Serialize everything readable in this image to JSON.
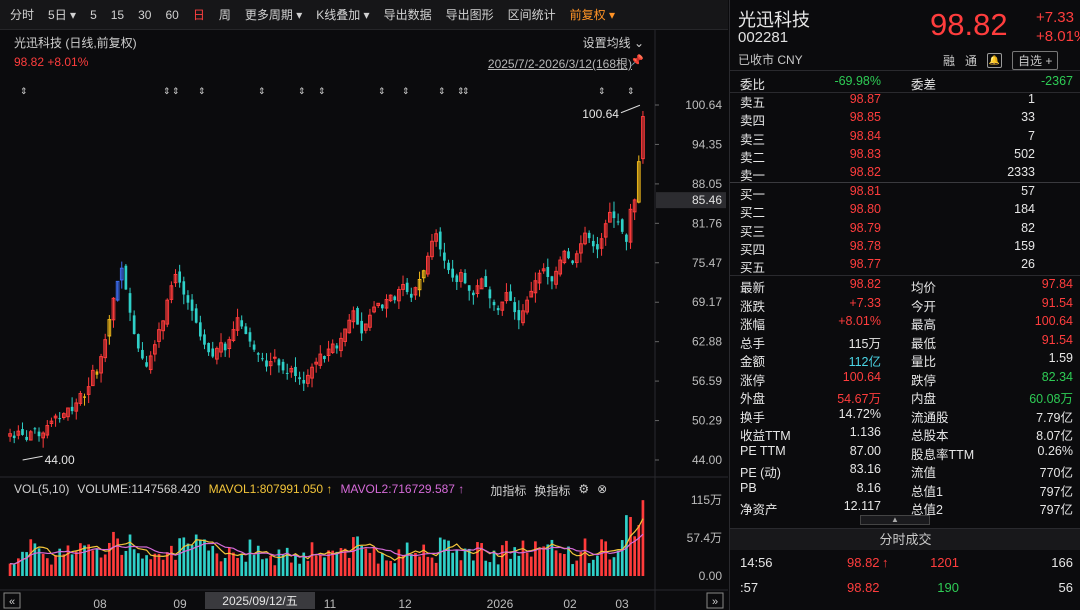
{
  "toolbar": {
    "items": [
      "分时",
      "5日",
      "5",
      "15",
      "30",
      "60",
      "日",
      "周",
      "更多周期",
      "K线叠加",
      "导出数据",
      "导出图形",
      "区间统计",
      "前复权"
    ],
    "active_index": 6,
    "dropdown_indices": [
      1,
      8,
      9,
      13
    ]
  },
  "chart": {
    "header": "光迅科技 (日线,前复权)",
    "price_line": "98.82  +8.01%",
    "ma_setting": "设置均线",
    "range": "2025/7/2-2026/3/12(168根)",
    "high_label": "100.64",
    "low_label": "44.00",
    "current_price_tag": "85.46",
    "cursor_date": "2025/09/12/五"
  },
  "chart_data": {
    "type": "candlestick",
    "price_axis": {
      "ticks": [
        100.64,
        94.35,
        88.05,
        81.76,
        75.47,
        69.17,
        62.88,
        56.59,
        50.29,
        44.0
      ],
      "labels": [
        "100.64",
        "94.35",
        "88.05",
        "81.76",
        "75.47",
        "69.17",
        "62.88",
        "56.59",
        "50.29",
        "44.00"
      ]
    },
    "volume_axis": {
      "ticks": [
        1150000,
        574000,
        0
      ],
      "labels": [
        "115万",
        "57.4万",
        "0.00"
      ]
    },
    "x_labels": [
      "08",
      "09",
      "10",
      "11",
      "12",
      "2026",
      "02",
      "03"
    ],
    "close_path": [
      48.2,
      47.5,
      48.6,
      48.0,
      47.2,
      48.5,
      48.9,
      47.8,
      48.3,
      49.5,
      50.2,
      51.0,
      50.6,
      51.4,
      52.3,
      51.8,
      53.1,
      54.6,
      53.9,
      55.7,
      58.3,
      57.6,
      60.5,
      63.2,
      66.4,
      69.8,
      72.5,
      74.6,
      71.2,
      67.5,
      64.1,
      61.8,
      60.2,
      58.9,
      60.6,
      62.4,
      64.8,
      66.2,
      69.5,
      71.8,
      73.6,
      72.3,
      70.4,
      69.1,
      67.8,
      65.9,
      63.7,
      62.4,
      61.2,
      60.5,
      61.8,
      62.7,
      61.5,
      63.2,
      64.8,
      66.7,
      65.3,
      64.1,
      62.9,
      61.6,
      60.8,
      60.2,
      58.9,
      59.7,
      60.4,
      59.1,
      58.3,
      57.8,
      58.6,
      57.4,
      56.9,
      56.2,
      57.5,
      58.8,
      59.6,
      60.9,
      60.1,
      61.7,
      62.5,
      61.8,
      63.4,
      64.9,
      66.3,
      67.8,
      65.6,
      64.2,
      65.7,
      67.1,
      68.4,
      69.0,
      68.2,
      69.6,
      70.3,
      69.5,
      71.2,
      72.0,
      70.8,
      69.9,
      71.5,
      72.8,
      74.2,
      76.5,
      78.9,
      80.1,
      77.6,
      75.8,
      74.3,
      73.1,
      72.4,
      73.9,
      72.2,
      71.0,
      70.3,
      71.8,
      72.9,
      71.6,
      69.8,
      68.7,
      67.9,
      69.2,
      70.7,
      69.4,
      67.6,
      66.3,
      67.8,
      69.5,
      70.9,
      72.6,
      73.8,
      74.5,
      73.2,
      72.5,
      74.1,
      75.9,
      77.3,
      76.2,
      75.4,
      76.9,
      78.5,
      80.2,
      79.4,
      78.1,
      77.6,
      79.3,
      81.7,
      83.5,
      82.6,
      81.9,
      80.4,
      78.8,
      84.0,
      85.5,
      91.6,
      98.8
    ],
    "volume_indicator": {
      "label": "VOL(5,10)",
      "volume": "VOLUME:1147568.420",
      "mavol1": "MAVOL1:807991.050",
      "mavol2": "MAVOL2:716729.587"
    },
    "volume_buttons": [
      "加指标",
      "换指标"
    ]
  },
  "quote": {
    "name": "光迅科技",
    "code": "002281",
    "status": "已收市 CNY",
    "price": "98.82",
    "change": "+7.33",
    "change_pct": "+8.01%",
    "tags": [
      "融",
      "通"
    ],
    "fav_button": "自选 +",
    "weibi_label": "委比",
    "weibi": "-69.98%",
    "weicha_label": "委差",
    "weicha": "-2367",
    "asks": [
      {
        "label": "卖五",
        "price": "98.87",
        "vol": "1"
      },
      {
        "label": "卖四",
        "price": "98.85",
        "vol": "33"
      },
      {
        "label": "卖三",
        "price": "98.84",
        "vol": "7"
      },
      {
        "label": "卖二",
        "price": "98.83",
        "vol": "502"
      },
      {
        "label": "卖一",
        "price": "98.82",
        "vol": "2333"
      }
    ],
    "bids": [
      {
        "label": "买一",
        "price": "98.81",
        "vol": "57"
      },
      {
        "label": "买二",
        "price": "98.80",
        "vol": "184"
      },
      {
        "label": "买三",
        "price": "98.79",
        "vol": "82"
      },
      {
        "label": "买四",
        "price": "98.78",
        "vol": "159"
      },
      {
        "label": "买五",
        "price": "98.77",
        "vol": "26"
      }
    ],
    "stats": [
      {
        "l1": "最新",
        "v1": "98.82",
        "c1": "red",
        "l2": "均价",
        "v2": "97.84",
        "c2": "red"
      },
      {
        "l1": "涨跌",
        "v1": "+7.33",
        "c1": "red",
        "l2": "今开",
        "v2": "91.54",
        "c2": "red"
      },
      {
        "l1": "涨幅",
        "v1": "+8.01%",
        "c1": "red",
        "l2": "最高",
        "v2": "100.64",
        "c2": "red"
      },
      {
        "l1": "总手",
        "v1": "115万",
        "c1": "white",
        "l2": "最低",
        "v2": "91.54",
        "c2": "red"
      },
      {
        "l1": "金额",
        "v1": "112亿",
        "c1": "cyan",
        "l2": "量比",
        "v2": "1.59",
        "c2": "white"
      },
      {
        "l1": "涨停",
        "v1": "100.64",
        "c1": "red",
        "l2": "跌停",
        "v2": "82.34",
        "c2": "green"
      },
      {
        "l1": "外盘",
        "v1": "54.67万",
        "c1": "red",
        "l2": "内盘",
        "v2": "60.08万",
        "c2": "green"
      },
      {
        "l1": "换手",
        "v1": "14.72%",
        "c1": "white",
        "l2": "流通股",
        "v2": "7.79亿",
        "c2": "white"
      },
      {
        "l1": "收益TTM",
        "v1": "1.136",
        "c1": "white",
        "l2": "总股本",
        "v2": "8.07亿",
        "c2": "white"
      },
      {
        "l1": "PE TTM",
        "v1": "87.00",
        "c1": "white",
        "l2": "股息率TTM",
        "v2": "0.26%",
        "c2": "white"
      },
      {
        "l1": "PE (动)",
        "v1": "83.16",
        "c1": "white",
        "l2": "流值",
        "v2": "770亿",
        "c2": "white"
      },
      {
        "l1": "PB",
        "v1": "8.16",
        "c1": "white",
        "l2": "总值1",
        "v2": "797亿",
        "c2": "white"
      },
      {
        "l1": "净资产",
        "v1": "12.117",
        "c1": "white",
        "l2": "总值2",
        "v2": "797亿",
        "c2": "white"
      }
    ],
    "trades_title": "分时成交",
    "trades": [
      {
        "time": "14:56",
        "price": "98.82",
        "arrow": "↑",
        "vol": "1201",
        "n": "166",
        "vol_color": "red"
      },
      {
        "time": ":57",
        "price": "98.82",
        "arrow": "",
        "vol": "190",
        "n": "56",
        "vol_color": "green"
      }
    ]
  }
}
